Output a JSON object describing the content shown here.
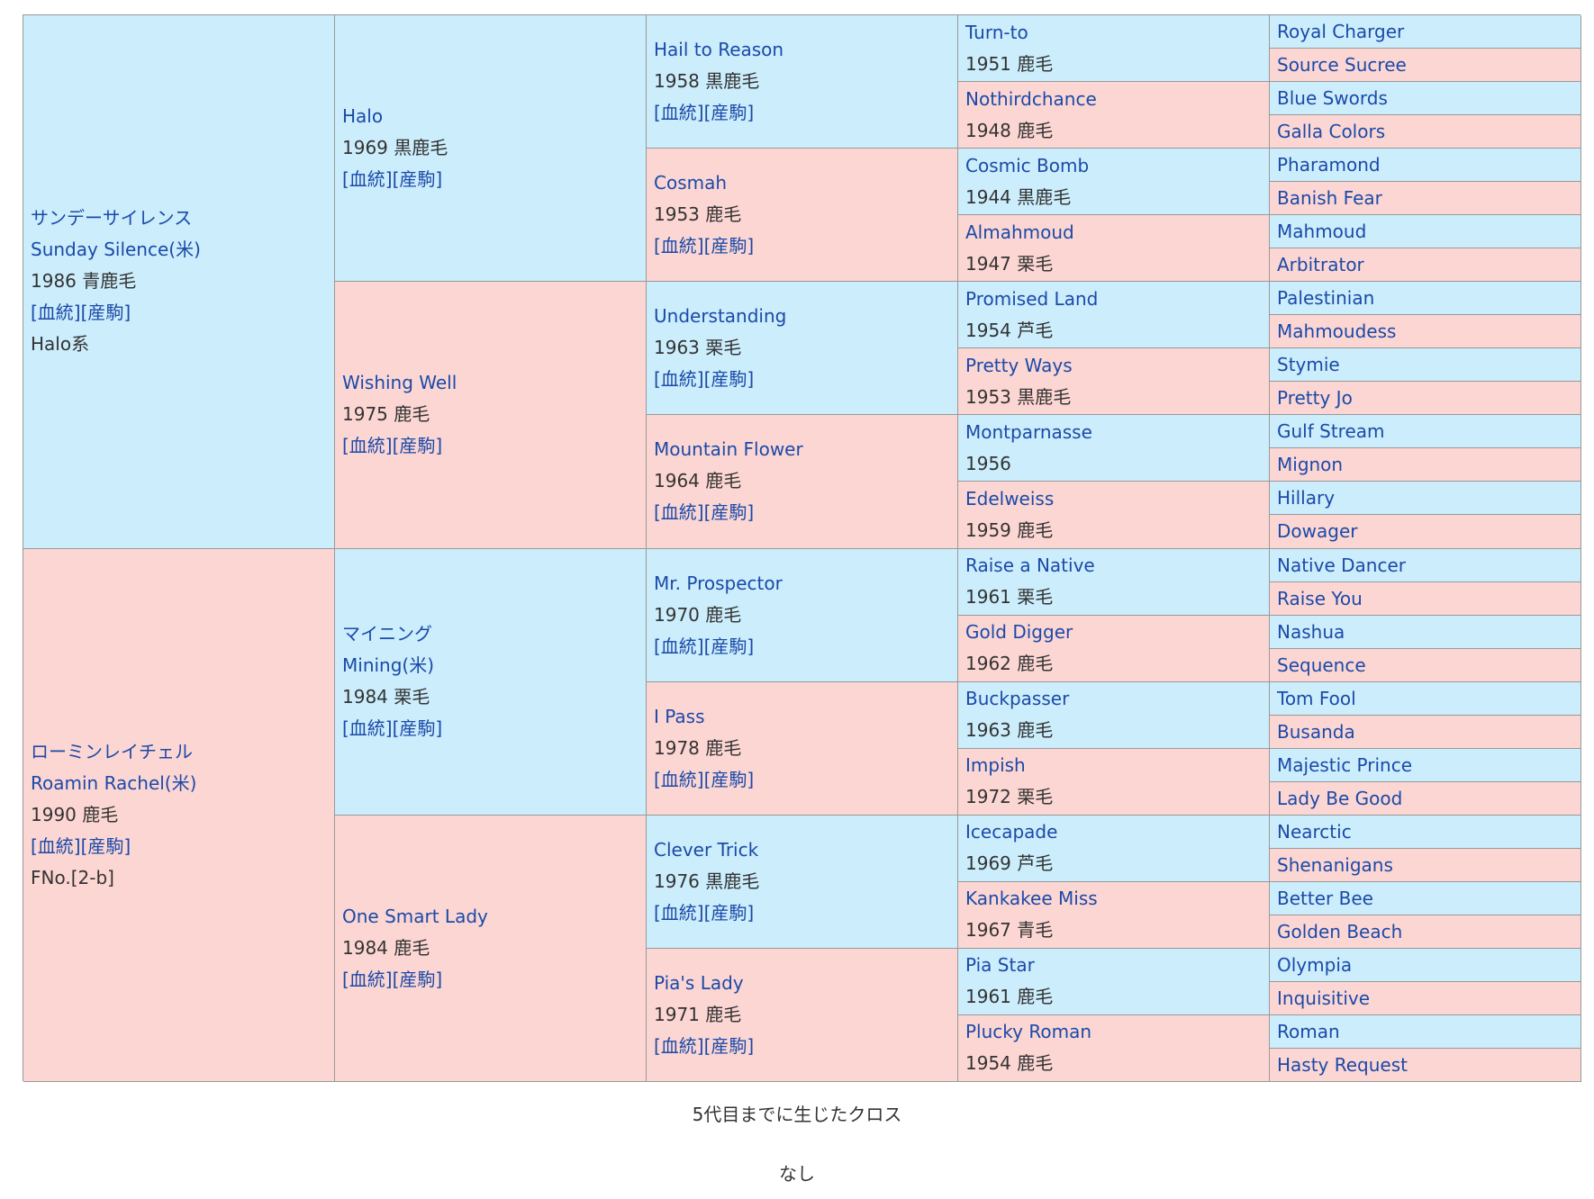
{
  "pedigree": {
    "sire": {
      "name_ja": "サンデーサイレンス",
      "name_en": "Sunday Silence(米)",
      "year_color": "1986 青鹿毛",
      "links": "[血統][産駒]",
      "note": "Halo系",
      "sire": {
        "name": "Halo",
        "year_color": "1969 黒鹿毛",
        "links": "[血統][産駒]",
        "sire": {
          "name": "Hail to Reason",
          "year_color": "1958 黒鹿毛",
          "links": "[血統][産駒]",
          "sire": {
            "name": "Turn-to",
            "year_color": "1951 鹿毛",
            "sire": "Royal Charger",
            "dam": "Source Sucree"
          },
          "dam": {
            "name": "Nothirdchance",
            "year_color": "1948 鹿毛",
            "sire": "Blue Swords",
            "dam": "Galla Colors"
          }
        },
        "dam": {
          "name": "Cosmah",
          "year_color": "1953 鹿毛",
          "links": "[血統][産駒]",
          "sire": {
            "name": "Cosmic Bomb",
            "year_color": "1944 黒鹿毛",
            "sire": "Pharamond",
            "dam": "Banish Fear"
          },
          "dam": {
            "name": "Almahmoud",
            "year_color": "1947 栗毛",
            "sire": "Mahmoud",
            "dam": "Arbitrator"
          }
        }
      },
      "dam": {
        "name": "Wishing Well",
        "year_color": "1975 鹿毛",
        "links": "[血統][産駒]",
        "sire": {
          "name": "Understanding",
          "year_color": "1963 栗毛",
          "links": "[血統][産駒]",
          "sire": {
            "name": "Promised Land",
            "year_color": "1954 芦毛",
            "sire": "Palestinian",
            "dam": "Mahmoudess"
          },
          "dam": {
            "name": "Pretty Ways",
            "year_color": "1953 黒鹿毛",
            "sire": "Stymie",
            "dam": "Pretty Jo"
          }
        },
        "dam": {
          "name": "Mountain Flower",
          "year_color": "1964 鹿毛",
          "links": "[血統][産駒]",
          "sire": {
            "name": "Montparnasse",
            "year_color": "1956",
            "sire": "Gulf Stream",
            "dam": "Mignon"
          },
          "dam": {
            "name": "Edelweiss",
            "year_color": "1959 鹿毛",
            "sire": "Hillary",
            "dam": "Dowager"
          }
        }
      }
    },
    "dam": {
      "name_ja": "ローミンレイチェル",
      "name_en": "Roamin Rachel(米)",
      "year_color": "1990 鹿毛",
      "links": "[血統][産駒]",
      "note": "FNo.[2-b]",
      "sire": {
        "name_ja": "マイニング",
        "name_en": "Mining(米)",
        "year_color": "1984 栗毛",
        "links": "[血統][産駒]",
        "sire": {
          "name": "Mr. Prospector",
          "year_color": "1970 鹿毛",
          "links": "[血統][産駒]",
          "sire": {
            "name": "Raise a Native",
            "year_color": "1961 栗毛",
            "sire": "Native Dancer",
            "dam": "Raise You"
          },
          "dam": {
            "name": "Gold Digger",
            "year_color": "1962 鹿毛",
            "sire": "Nashua",
            "dam": "Sequence"
          }
        },
        "dam": {
          "name": "I Pass",
          "year_color": "1978 鹿毛",
          "links": "[血統][産駒]",
          "sire": {
            "name": "Buckpasser",
            "year_color": "1963 鹿毛",
            "sire": "Tom Fool",
            "dam": "Busanda"
          },
          "dam": {
            "name": "Impish",
            "year_color": "1972 栗毛",
            "sire": "Majestic Prince",
            "dam": "Lady Be Good"
          }
        }
      },
      "dam": {
        "name": "One Smart Lady",
        "year_color": "1984 鹿毛",
        "links": "[血統][産駒]",
        "sire": {
          "name": "Clever Trick",
          "year_color": "1976 黒鹿毛",
          "links": "[血統][産駒]",
          "sire": {
            "name": "Icecapade",
            "year_color": "1969 芦毛",
            "sire": "Nearctic",
            "dam": "Shenanigans"
          },
          "dam": {
            "name": "Kankakee Miss",
            "year_color": "1967 青毛",
            "sire": "Better Bee",
            "dam": "Golden Beach"
          }
        },
        "dam": {
          "name": "Pia's Lady",
          "year_color": "1971 鹿毛",
          "links": "[血統][産駒]",
          "sire": {
            "name": "Pia Star",
            "year_color": "1961 鹿毛",
            "sire": "Olympia",
            "dam": "Inquisitive"
          },
          "dam": {
            "name": "Plucky Roman",
            "year_color": "1954 鹿毛",
            "sire": "Roman",
            "dam": "Hasty Request"
          }
        }
      }
    }
  },
  "cross": {
    "title": "5代目までに生じたクロス",
    "value": "なし"
  },
  "colors": {
    "male_bg": "#cbedfc",
    "female_bg": "#fcd6d3",
    "link": "#1b4aa8",
    "text": "#333333"
  }
}
